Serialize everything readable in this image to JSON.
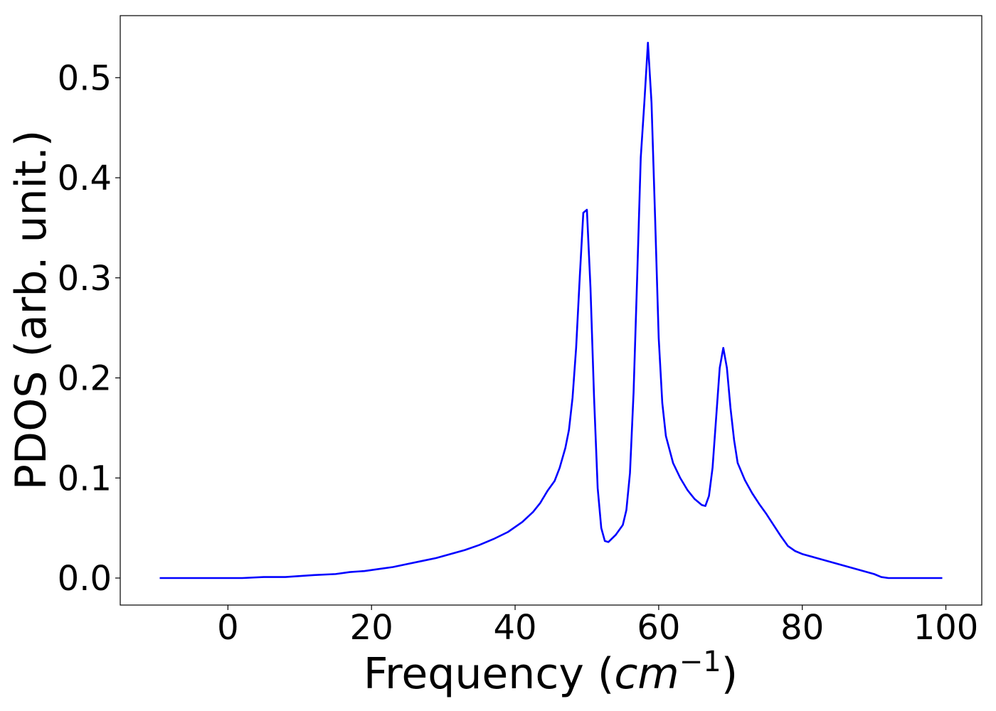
{
  "chart_data": {
    "type": "line",
    "title": "",
    "xlabel": {
      "prefix": "Frequency (",
      "math": "cm",
      "superscript": "−1",
      "suffix": ")"
    },
    "ylabel": "PDOS (arb. unit.)",
    "xlim": [
      -15,
      105
    ],
    "ylim": [
      -0.027,
      0.562
    ],
    "xticks": [
      0,
      20,
      40,
      60,
      80,
      100
    ],
    "xtick_labels": [
      "0",
      "20",
      "40",
      "60",
      "80",
      "100"
    ],
    "yticks": [
      0.0,
      0.1,
      0.2,
      0.3,
      0.4,
      0.5
    ],
    "ytick_labels": [
      "0.0",
      "0.1",
      "0.2",
      "0.3",
      "0.4",
      "0.5"
    ],
    "grid": false,
    "series": [
      {
        "color": "#0000ff",
        "x": [
          -9.5,
          0,
          2,
          5,
          8,
          10,
          12,
          15,
          17,
          19,
          21,
          23,
          25,
          27,
          29,
          31,
          33,
          35,
          37,
          39,
          41,
          42.5,
          43.5,
          44.5,
          45.5,
          46.2,
          47,
          47.5,
          48,
          48.5,
          49,
          49.5,
          50,
          50.5,
          51,
          51.5,
          52,
          52.5,
          53,
          54,
          55,
          55.5,
          56,
          56.5,
          57,
          57.5,
          58,
          58.5,
          59,
          59.5,
          60,
          60.5,
          61,
          62,
          63,
          64,
          65,
          66,
          66.5,
          67,
          67.5,
          68,
          68.5,
          69,
          69.5,
          70,
          70.5,
          71,
          72,
          73,
          74,
          75,
          76,
          77,
          78,
          79,
          80,
          82,
          84,
          86,
          88,
          90,
          91,
          92,
          95,
          99.5
        ],
        "y": [
          0.0,
          0.0,
          0.0,
          0.001,
          0.001,
          0.002,
          0.003,
          0.004,
          0.006,
          0.007,
          0.009,
          0.011,
          0.014,
          0.017,
          0.02,
          0.024,
          0.028,
          0.033,
          0.039,
          0.046,
          0.056,
          0.066,
          0.075,
          0.087,
          0.097,
          0.11,
          0.13,
          0.148,
          0.18,
          0.23,
          0.3,
          0.365,
          0.368,
          0.29,
          0.18,
          0.09,
          0.05,
          0.037,
          0.036,
          0.043,
          0.053,
          0.068,
          0.105,
          0.185,
          0.3,
          0.42,
          0.475,
          0.535,
          0.475,
          0.36,
          0.24,
          0.175,
          0.142,
          0.115,
          0.1,
          0.088,
          0.079,
          0.073,
          0.072,
          0.082,
          0.11,
          0.16,
          0.21,
          0.23,
          0.21,
          0.17,
          0.138,
          0.115,
          0.098,
          0.085,
          0.074,
          0.064,
          0.053,
          0.042,
          0.032,
          0.027,
          0.024,
          0.02,
          0.016,
          0.012,
          0.008,
          0.004,
          0.001,
          0.0,
          0.0,
          0.0
        ]
      }
    ]
  }
}
